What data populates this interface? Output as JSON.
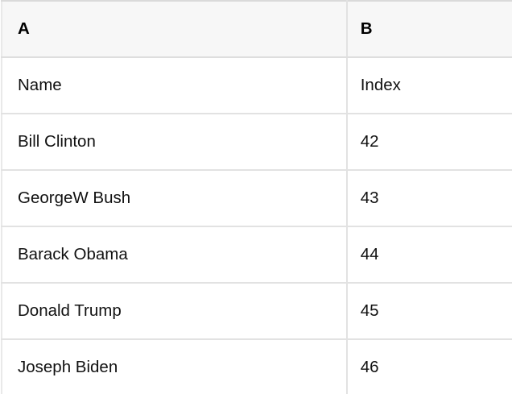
{
  "table": {
    "columns": [
      {
        "label": "A"
      },
      {
        "label": "B"
      }
    ],
    "rows": [
      {
        "a": "Name",
        "b": "Index"
      },
      {
        "a": "Bill Clinton",
        "b": "42"
      },
      {
        "a": "GeorgeW Bush",
        "b": "43"
      },
      {
        "a": "Barack Obama",
        "b": "44"
      },
      {
        "a": "Donald Trump",
        "b": "45"
      },
      {
        "a": "Joseph Biden",
        "b": "46"
      }
    ]
  },
  "colors": {
    "header_bg": "#f7f7f7",
    "grid_border": "#e2e2e2",
    "top_border": "#dadada",
    "text": "#111111",
    "body_bg": "#ffffff"
  }
}
